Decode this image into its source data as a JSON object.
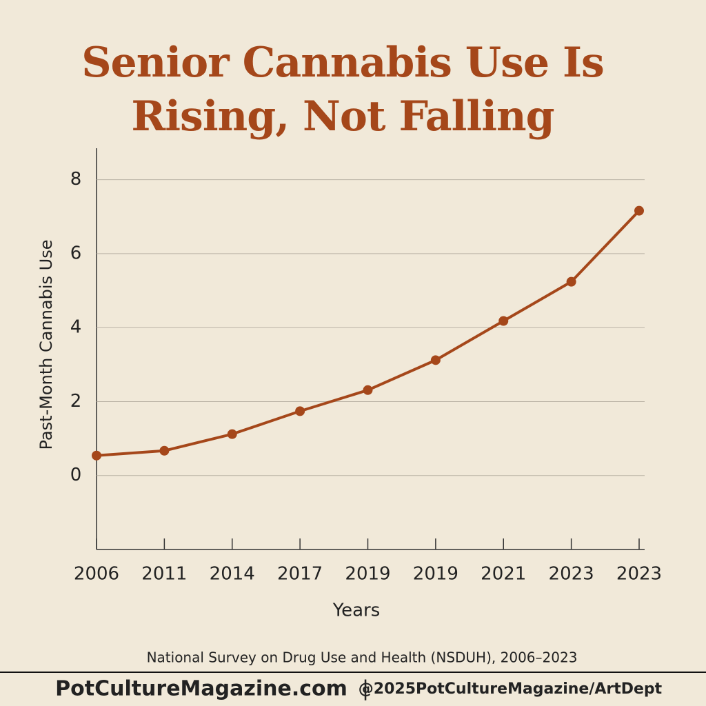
{
  "chart_data": {
    "type": "line",
    "title": "Senior Cannabis Use Is Rising, Not Falling",
    "y_label": "Past-Month Cannabis Use",
    "x_label": "Years",
    "source": "National Survey on Drug Use and Health (NSDUH), 2006–2023",
    "footer_site": "PotCultureMagazine.com",
    "footer_separator": "|",
    "footer_credit": "@2025PotCultureMagazine/ArtDept",
    "categories": [
      "2006",
      "2011",
      "2014",
      "2017",
      "2019",
      "2019",
      "2021",
      "2023",
      "2023"
    ],
    "values": [
      0.54,
      0.67,
      1.12,
      1.74,
      2.31,
      3.12,
      4.18,
      5.24,
      7.16
    ],
    "color": "#a5471a",
    "ylim": [
      -2,
      8.85
    ],
    "yticks": [
      0,
      2,
      4,
      6,
      8
    ],
    "grid": true
  }
}
